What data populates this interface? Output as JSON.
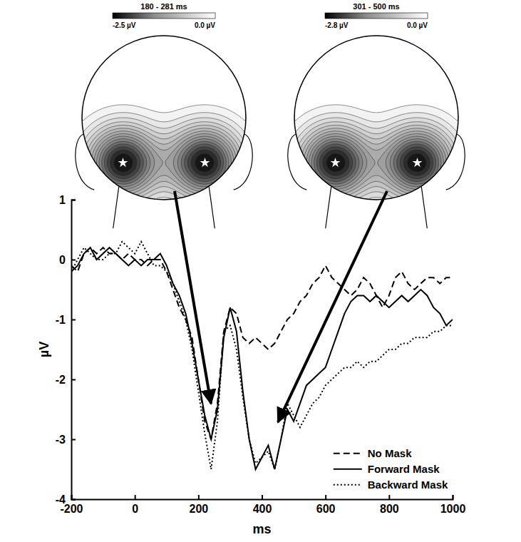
{
  "chart_data": [
    {
      "type": "topomap",
      "title": "180 - 281 ms",
      "colorbar_range": [
        -2.5,
        0
      ],
      "colorbar_ticks": [
        {
          "value": -2.5,
          "label": "-2.5 µV"
        },
        {
          "value": 0,
          "label": "0.0 µV"
        }
      ]
    },
    {
      "type": "topomap",
      "title": "301 - 500 ms",
      "colorbar_range": [
        -2.8,
        0
      ],
      "colorbar_ticks": [
        {
          "value": -2.8,
          "label": "-2.8 µV"
        },
        {
          "value": 0,
          "label": "0.0 µV"
        }
      ]
    },
    {
      "type": "line",
      "x_label": "ms",
      "y_label": "µV",
      "x": [
        -200,
        -180,
        -160,
        -140,
        -120,
        -100,
        -80,
        -60,
        -40,
        -20,
        0,
        20,
        40,
        60,
        80,
        100,
        120,
        140,
        160,
        180,
        200,
        220,
        240,
        260,
        280,
        300,
        320,
        340,
        360,
        380,
        400,
        420,
        440,
        460,
        480,
        500,
        520,
        540,
        560,
        580,
        600,
        620,
        640,
        660,
        680,
        700,
        720,
        740,
        760,
        780,
        800,
        820,
        840,
        860,
        880,
        900,
        920,
        940,
        960,
        980,
        1000
      ],
      "series": [
        {
          "name": "No Mask",
          "color": "#000000",
          "line_style": "dashed",
          "values": [
            -0.1,
            -0.2,
            0.1,
            0.2,
            0.1,
            0.2,
            0.1,
            0.1,
            0,
            0.1,
            0,
            0,
            -0.1,
            0,
            0,
            -0.2,
            -0.5,
            -0.8,
            -1.0,
            -1.3,
            -2.0,
            -2.7,
            -3.0,
            -2.4,
            -1.2,
            -0.8,
            -0.9,
            -1.3,
            -1.4,
            -1.3,
            -1.4,
            -1.5,
            -1.4,
            -1.2,
            -1.0,
            -0.9,
            -0.7,
            -0.6,
            -0.4,
            -0.3,
            -0.1,
            -0.3,
            -0.4,
            -0.5,
            -0.6,
            -0.5,
            -0.3,
            -0.4,
            -0.6,
            -0.8,
            -0.6,
            -0.3,
            -0.2,
            -0.4,
            -0.5,
            -0.4,
            -0.3,
            -0.3,
            -0.4,
            -0.3,
            -0.3
          ]
        },
        {
          "name": "Forward Mask",
          "color": "#000000",
          "line_style": "solid",
          "values": [
            -0.2,
            -0.1,
            0.1,
            0.2,
            0,
            0.1,
            0.2,
            0.1,
            0,
            -0.1,
            0,
            -0.1,
            0,
            0,
            0.1,
            -0.1,
            -0.4,
            -0.6,
            -0.9,
            -1.4,
            -2.0,
            -2.6,
            -3.0,
            -2.5,
            -1.3,
            -0.8,
            -1.2,
            -2.2,
            -3.0,
            -3.5,
            -3.3,
            -3.1,
            -3.5,
            -3.0,
            -2.5,
            -2.7,
            -2.4,
            -2.1,
            -2.0,
            -1.9,
            -1.8,
            -1.5,
            -1.2,
            -0.9,
            -0.7,
            -0.6,
            -0.6,
            -0.7,
            -0.6,
            -0.7,
            -0.8,
            -0.7,
            -0.6,
            -0.7,
            -0.6,
            -0.5,
            -0.6,
            -0.8,
            -0.9,
            -1.1,
            -1.0
          ]
        },
        {
          "name": "Backward Mask",
          "color": "#000000",
          "line_style": "dotted",
          "values": [
            -0.2,
            0,
            0.2,
            0.1,
            0,
            0,
            0.1,
            0.1,
            0.3,
            0.2,
            0.1,
            0.3,
            0.1,
            -0.1,
            -0.1,
            -0.2,
            -0.4,
            -0.7,
            -1.0,
            -1.5,
            -2.2,
            -2.9,
            -3.5,
            -2.7,
            -1.2,
            -1.1,
            -1.5,
            -2.3,
            -3.0,
            -3.4,
            -3.3,
            -3.2,
            -3.5,
            -3.0,
            -2.4,
            -2.6,
            -2.8,
            -2.6,
            -2.4,
            -2.3,
            -2.1,
            -2.0,
            -1.9,
            -1.8,
            -1.8,
            -1.7,
            -1.8,
            -1.7,
            -1.7,
            -1.6,
            -1.5,
            -1.5,
            -1.4,
            -1.4,
            -1.3,
            -1.3,
            -1.3,
            -1.2,
            -1.2,
            -1.1,
            -1.1
          ]
        }
      ],
      "xlim": [
        -200,
        1000
      ],
      "ylim": [
        -4,
        1
      ],
      "xticks": [
        -200,
        0,
        200,
        400,
        600,
        800,
        1000
      ],
      "yticks": [
        -4,
        -3,
        -2,
        -1,
        0,
        1
      ],
      "grid": false,
      "legend": "lower right"
    }
  ]
}
